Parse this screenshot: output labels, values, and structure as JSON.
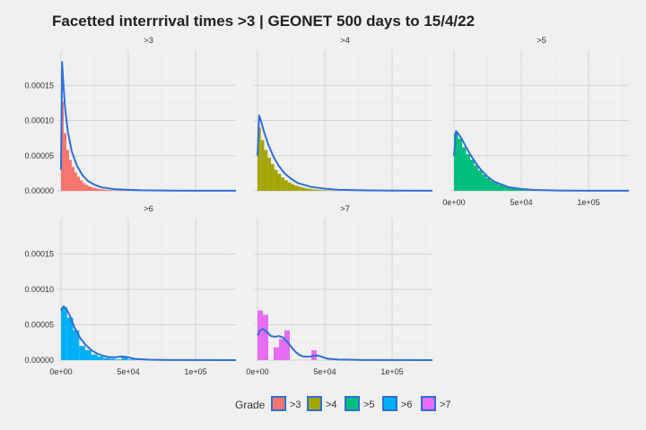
{
  "title": "Facetted interrrival times >3 | GEONET 500 days to 15/4/22",
  "chart_data": {
    "type": "histogram",
    "title": "Facetted interrrival times >3 | GEONET 500 days to 15/4/22",
    "xlim": [
      0,
      130000
    ],
    "ylim": [
      0,
      0.0002
    ],
    "x_ticks": [
      0,
      50000,
      100000
    ],
    "x_tick_labels": [
      "0e+00",
      "5e+04",
      "1e+05"
    ],
    "y_ticks": [
      0,
      5e-05,
      0.0001,
      0.00015
    ],
    "y_tick_labels": [
      "0.00000",
      "0.00005",
      "0.00010",
      "0.00015"
    ],
    "density_color": "#2f6fd6",
    "legend": {
      "title": "Grade",
      "position": "bottom",
      "items": [
        {
          "label": ">3",
          "color": "#f8766d"
        },
        {
          "label": ">4",
          "color": "#a3a500"
        },
        {
          "label": ">5",
          "color": "#00bf7d"
        },
        {
          "label": ">6",
          "color": "#00b0f6"
        },
        {
          "label": ">7",
          "color": "#e76bf3"
        }
      ]
    },
    "facets": [
      {
        "label": ">3",
        "color": "#f8766d",
        "binwidth": 2000,
        "bar_max_x": 130000,
        "hist": [
          0.000127,
          8.2e-05,
          5.8e-05,
          4.4e-05,
          3.4e-05,
          2.6e-05,
          2e-05,
          1.5e-05,
          1.1e-05,
          8.5e-06,
          6.5e-06,
          5e-06,
          4e-06,
          3.2e-06,
          2.6e-06,
          2.1e-06,
          1.7e-06,
          1.3e-06,
          1e-06,
          8e-07,
          6e-07,
          5e-07,
          4e-07,
          3e-07
        ],
        "density_x": [
          0,
          800,
          1500,
          3000,
          5000,
          8000,
          12000,
          16000,
          20000,
          25000,
          30000,
          40000,
          50000,
          60000,
          80000,
          100000,
          130000
        ],
        "density_y": [
          3e-05,
          0.000183,
          0.00016,
          0.000118,
          8.5e-05,
          5.6e-05,
          3.5e-05,
          2.2e-05,
          1.4e-05,
          8.5e-06,
          5e-06,
          2.2e-06,
          1.5e-06,
          8e-07,
          4e-07,
          2e-07,
          1e-07
        ]
      },
      {
        "label": ">4",
        "color": "#a3a500",
        "binwidth": 2500,
        "bar_max_x": 57000,
        "hist": [
          9e-05,
          7.2e-05,
          5.8e-05,
          4.7e-05,
          3.8e-05,
          3e-05,
          2.4e-05,
          1.9e-05,
          1.5e-05,
          1.2e-05,
          9.5e-06,
          7.5e-06,
          6e-06,
          4.7e-06,
          3.6e-06,
          2.8e-06,
          2.1e-06,
          1.6e-06,
          1.2e-06,
          9e-07,
          7e-07,
          5e-07,
          4e-07
        ],
        "density_x": [
          0,
          1200,
          2500,
          5000,
          8000,
          12000,
          16000,
          20000,
          25000,
          30000,
          40000,
          50000,
          60000,
          80000,
          100000,
          130000
        ],
        "density_y": [
          5e-05,
          0.000107,
          0.0001,
          8.3e-05,
          6.6e-05,
          4.8e-05,
          3.5e-05,
          2.5e-05,
          1.7e-05,
          1.1e-05,
          5.5e-06,
          3e-06,
          1.5e-06,
          6e-07,
          3e-07,
          1e-07
        ]
      },
      {
        "label": ">5",
        "color": "#00bf7d",
        "binwidth": 3000,
        "bar_max_x": 60000,
        "hist": [
          8.2e-05,
          7.4e-05,
          6.2e-05,
          5.2e-05,
          4.4e-05,
          3.6e-05,
          2.9e-05,
          2.3e-05,
          1.8e-05,
          1.4e-05,
          1.1e-05,
          8.5e-06,
          6.5e-06,
          4.8e-06,
          3.6e-06,
          2.6e-06,
          1.8e-06,
          1.2e-06,
          8e-07,
          5e-07
        ],
        "density_x": [
          0,
          1500,
          3000,
          6000,
          9000,
          12000,
          16000,
          20000,
          25000,
          30000,
          40000,
          50000,
          60000,
          80000,
          100000,
          130000
        ],
        "density_y": [
          5e-05,
          8.5e-05,
          8.2e-05,
          7.3e-05,
          6.2e-05,
          5.2e-05,
          4e-05,
          3e-05,
          2e-05,
          1.3e-05,
          5.5e-06,
          2.5e-06,
          1.2e-06,
          4e-07,
          2e-07,
          1e-07
        ]
      },
      {
        "label": ">6",
        "color": "#00b0f6",
        "binwidth": 4500,
        "bar_max_x": 58500,
        "hist": [
          7.5e-05,
          6e-05,
          4.2e-05,
          2e-05,
          1.4e-05,
          8e-06,
          5e-06,
          3e-06,
          2e-06,
          1e-06,
          4.5e-06,
          1e-06,
          5e-07
        ],
        "density_x": [
          0,
          2000,
          4000,
          7000,
          10000,
          14000,
          18000,
          22000,
          26000,
          30000,
          35000,
          40000,
          45000,
          50000,
          55000,
          65000,
          80000,
          100000,
          130000
        ],
        "density_y": [
          7e-05,
          7.6e-05,
          7.2e-05,
          6.1e-05,
          4.6e-05,
          3.2e-05,
          2.2e-05,
          1.5e-05,
          1e-05,
          6.8e-06,
          4.5e-06,
          4e-06,
          5.2e-06,
          4e-06,
          1.8e-06,
          6e-07,
          2e-07,
          1e-07,
          0
        ]
      },
      {
        "label": ">7",
        "color": "#e76bf3",
        "binwidth": 4000,
        "bar_max_x": 48000,
        "hist": [
          7e-05,
          6.4e-05,
          0,
          1.8e-05,
          3e-05,
          4.2e-05,
          0,
          0,
          0,
          0,
          1.4e-05,
          0
        ],
        "density_x": [
          0,
          2000,
          4000,
          7000,
          10000,
          13000,
          16000,
          19000,
          22000,
          25000,
          28000,
          31000,
          34000,
          38000,
          42000,
          45000,
          48000,
          52000,
          60000,
          80000,
          100000,
          130000
        ],
        "density_y": [
          3.5e-05,
          4.2e-05,
          4.4e-05,
          4e-05,
          3.4e-05,
          3.3e-05,
          3.4e-05,
          3.2e-05,
          2.6e-05,
          1.9e-05,
          1.2e-05,
          7.5e-06,
          5.2e-06,
          4.8e-06,
          6.2e-06,
          6.5e-06,
          4.5e-06,
          2e-06,
          8e-07,
          2e-07,
          1e-07,
          0
        ]
      }
    ]
  }
}
